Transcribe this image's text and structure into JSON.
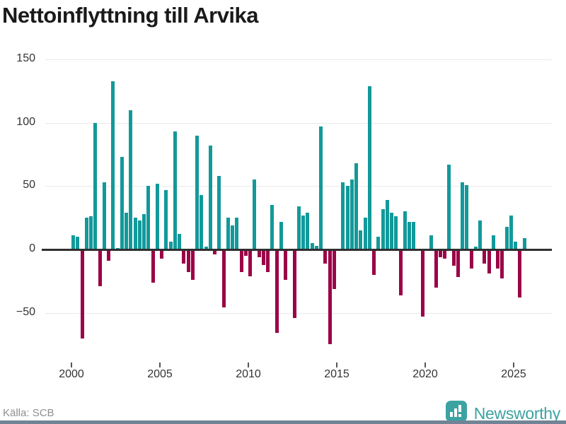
{
  "title": "Nettoinflyttning till Arvika",
  "footer": {
    "source_label": "Källa: SCB",
    "brand": "Newsworthy"
  },
  "colors": {
    "positive": "#12999a",
    "negative": "#9b0347",
    "axis": "#2f2f2f",
    "grid": "#e9e9e9",
    "tick_label": "#333333",
    "source_text": "#8f8f8f",
    "brand_teal": "#3da2a2",
    "bottom_strip": "#708496",
    "title_color": "#1a1a1a"
  },
  "chart_data": {
    "type": "bar",
    "title": "Nettoinflyttning till Arvika",
    "x_start": "2000Q1",
    "frequency": "quarterly",
    "x_tick_labels": [
      "2000",
      "2005",
      "2010",
      "2015",
      "2020",
      "2025"
    ],
    "y_ticks": [
      150,
      100,
      50,
      0,
      -50
    ],
    "ylim": [
      -80,
      155
    ],
    "grid": true,
    "legend": false,
    "values": [
      11,
      10,
      -70,
      25,
      26,
      100,
      -29,
      53,
      -9,
      133,
      1,
      73,
      29,
      110,
      25,
      23,
      28,
      50,
      -26,
      52,
      -7,
      47,
      6,
      93,
      12,
      -11,
      -18,
      -24,
      90,
      43,
      2,
      82,
      -4,
      58,
      -46,
      25,
      19,
      25,
      -18,
      -5,
      -21,
      55,
      -6,
      -12,
      -18,
      35,
      -66,
      22,
      -24,
      0,
      -54,
      34,
      27,
      29,
      5,
      3,
      97,
      -11,
      -75,
      -31,
      0,
      53,
      50,
      55,
      68,
      15,
      25,
      129,
      -20,
      10,
      32,
      39,
      29,
      26,
      -36,
      30,
      22,
      22,
      0,
      -53,
      0,
      11,
      -30,
      -6,
      -7,
      67,
      -13,
      -22,
      53,
      51,
      -15,
      2,
      23,
      -11,
      -19,
      11,
      -15,
      -23,
      18,
      27,
      6,
      -38,
      9
    ]
  }
}
